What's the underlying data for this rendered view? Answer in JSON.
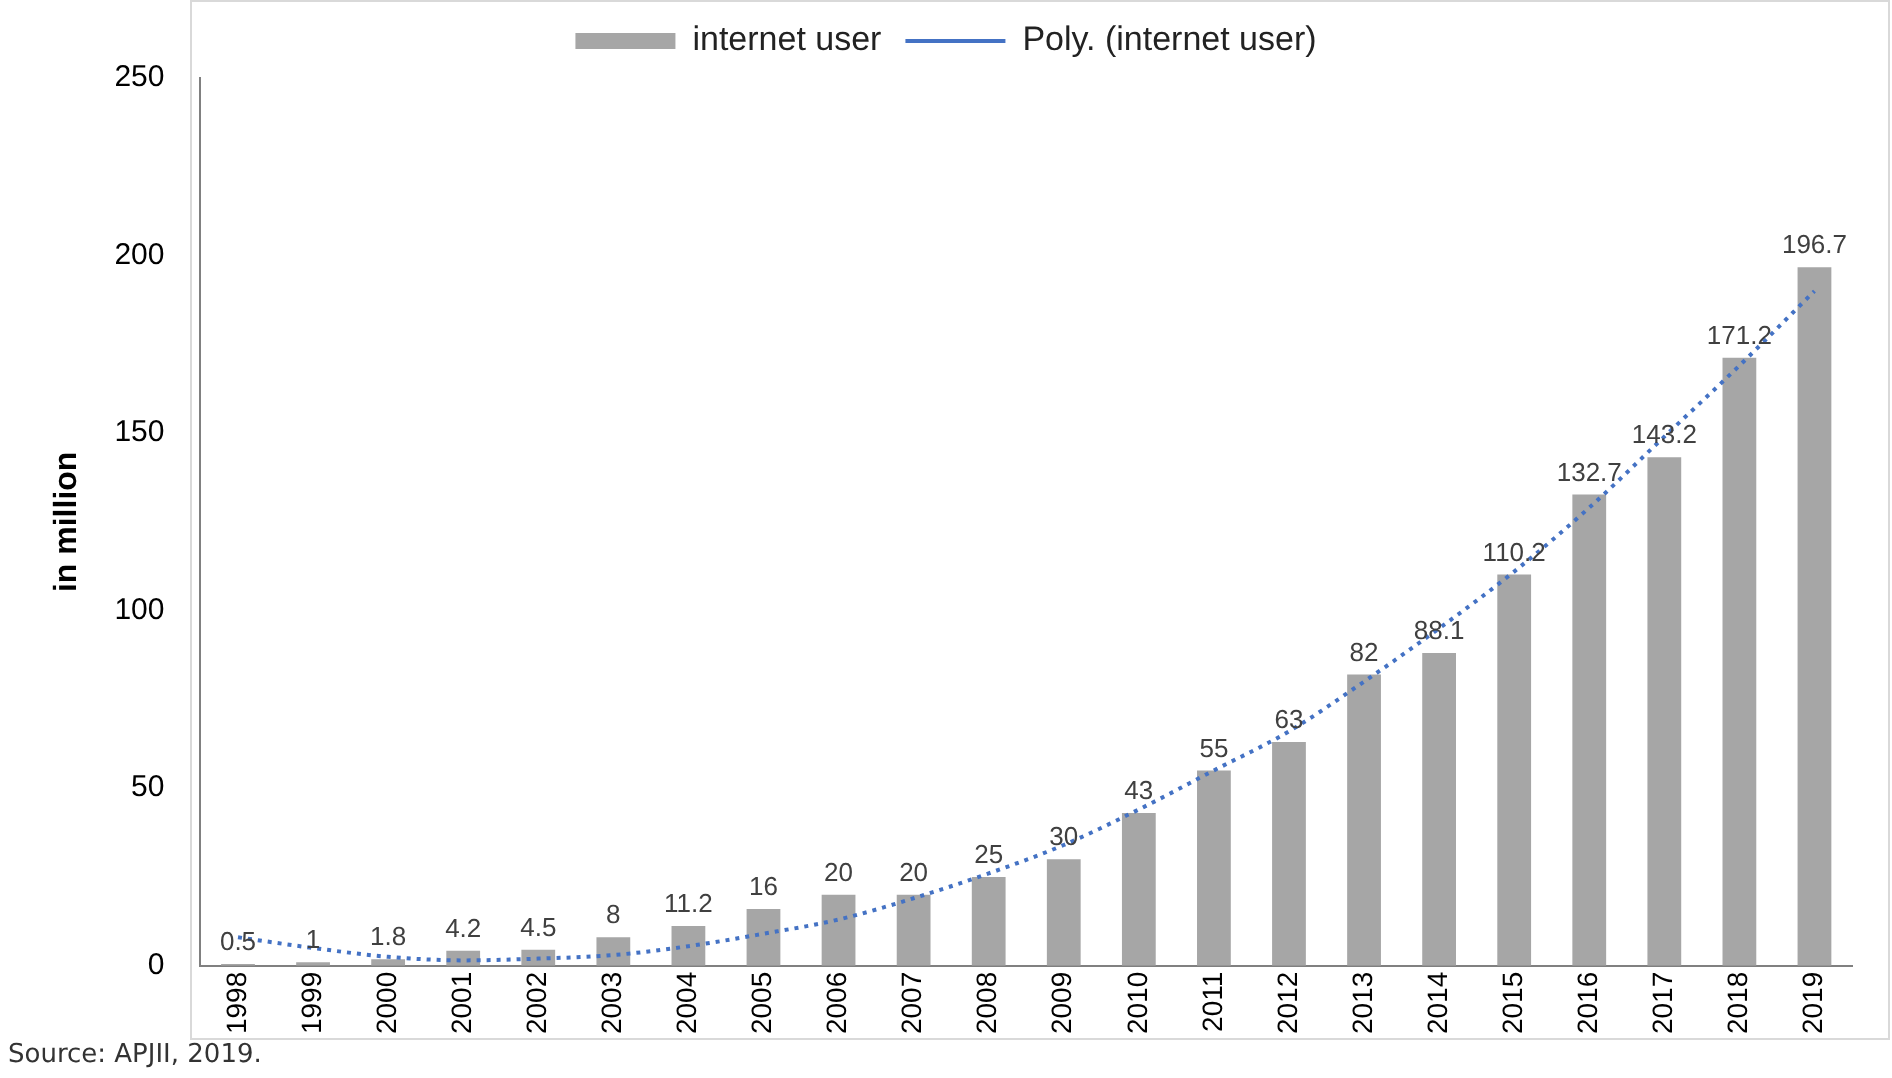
{
  "chart_data": {
    "type": "bar",
    "ylabel": "in million",
    "categories": [
      "1998",
      "1999",
      "2000",
      "2001",
      "2002",
      "2003",
      "2004",
      "2005",
      "2006",
      "2007",
      "2008",
      "2009",
      "2010",
      "2011",
      "2012",
      "2013",
      "2014",
      "2015",
      "2016",
      "2017",
      "2018",
      "2019"
    ],
    "series": [
      {
        "name": "internet user",
        "color": "#a6a6a6",
        "values": [
          0.5,
          1,
          1.8,
          4.2,
          4.5,
          8,
          11.2,
          16,
          20,
          20,
          25,
          30,
          43,
          55,
          63,
          82,
          88.1,
          110.2,
          132.7,
          143.2,
          171.2,
          196.7
        ],
        "value_labels": [
          "0.5",
          "1",
          "1.8",
          "4.2",
          "4.5",
          "8",
          "11.2",
          "16",
          "20",
          "20",
          "25",
          "30",
          "43",
          "55",
          "63",
          "82",
          "88.1",
          "110.2",
          "132.7",
          "143.2",
          "171.2",
          "196.7"
        ]
      },
      {
        "name": "Poly. (internet user)",
        "type": "line",
        "color": "#4472c4",
        "line_style": "dotted",
        "marker": "none",
        "values": [
          8,
          5,
          2.5,
          1.5,
          2,
          3,
          5.5,
          9,
          13,
          19,
          26,
          34,
          44,
          55,
          66,
          80,
          95,
          111,
          129,
          149,
          169,
          190
        ]
      }
    ],
    "ylim": [
      0,
      250
    ],
    "yticks": [
      0,
      50,
      100,
      150,
      200,
      250
    ],
    "grid": false,
    "legend": "top",
    "annotations": [
      "Source: APJII, 2019."
    ]
  }
}
